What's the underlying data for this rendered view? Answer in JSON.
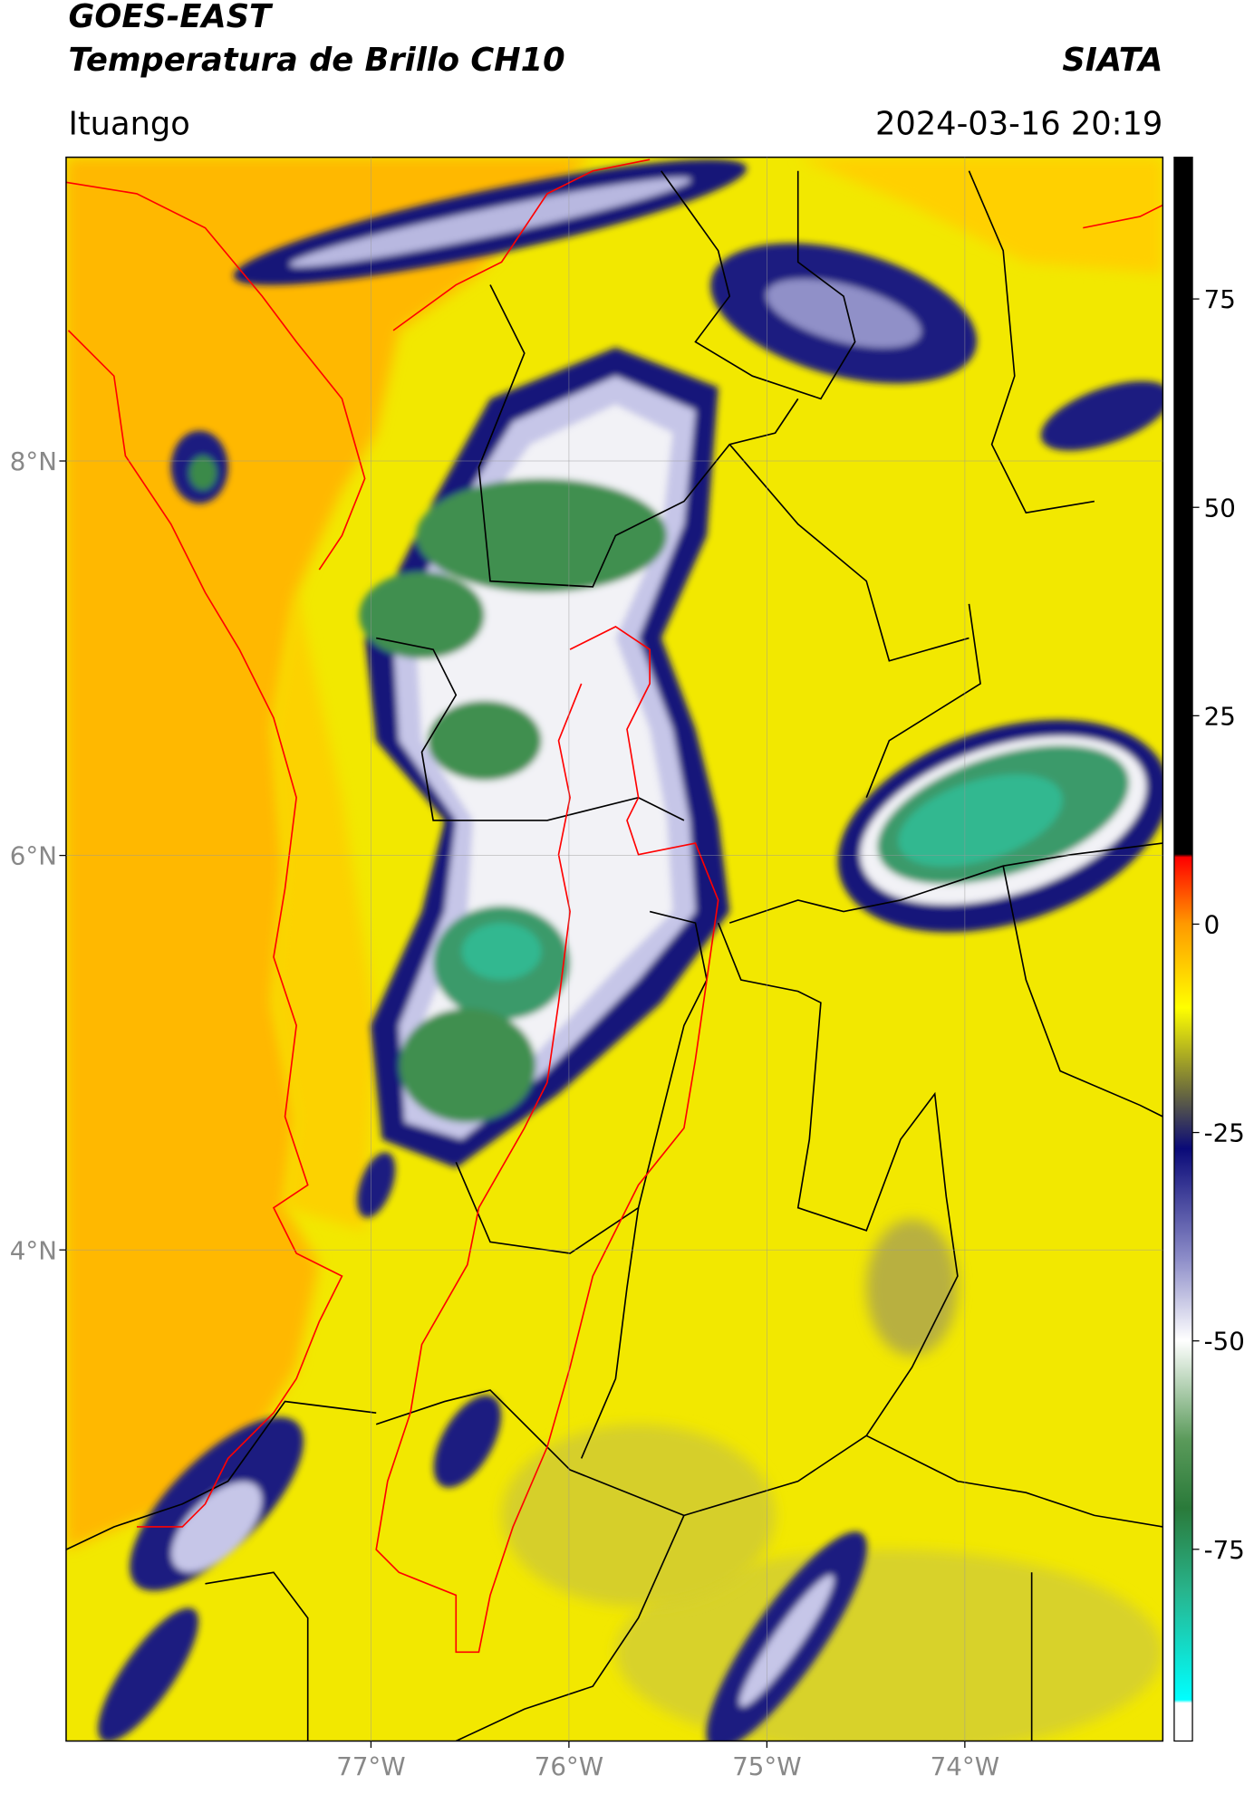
{
  "header": {
    "title_line1": "GOES-EAST",
    "title_line2": "Temperatura de Brillo CH10",
    "agency": "SIATA",
    "location": "Ituango",
    "timestamp": "2024-03-16 20:19"
  },
  "map": {
    "xlim": [
      -78.54,
      -73.0
    ],
    "ylim": [
      1.51,
      9.54
    ],
    "xticks": [
      {
        "value": -77,
        "label": "77°W"
      },
      {
        "value": -76,
        "label": "76°W"
      },
      {
        "value": -75,
        "label": "75°W"
      },
      {
        "value": -74,
        "label": "74°W"
      }
    ],
    "yticks": [
      {
        "value": 8,
        "label": "8°N"
      },
      {
        "value": 6,
        "label": "6°N"
      },
      {
        "value": 4,
        "label": "4°N"
      }
    ],
    "grid": true
  },
  "colorbar": {
    "lim": [
      -98,
      92
    ],
    "ticks": [
      75,
      50,
      25,
      0,
      -25,
      -50,
      -75
    ]
  }
}
